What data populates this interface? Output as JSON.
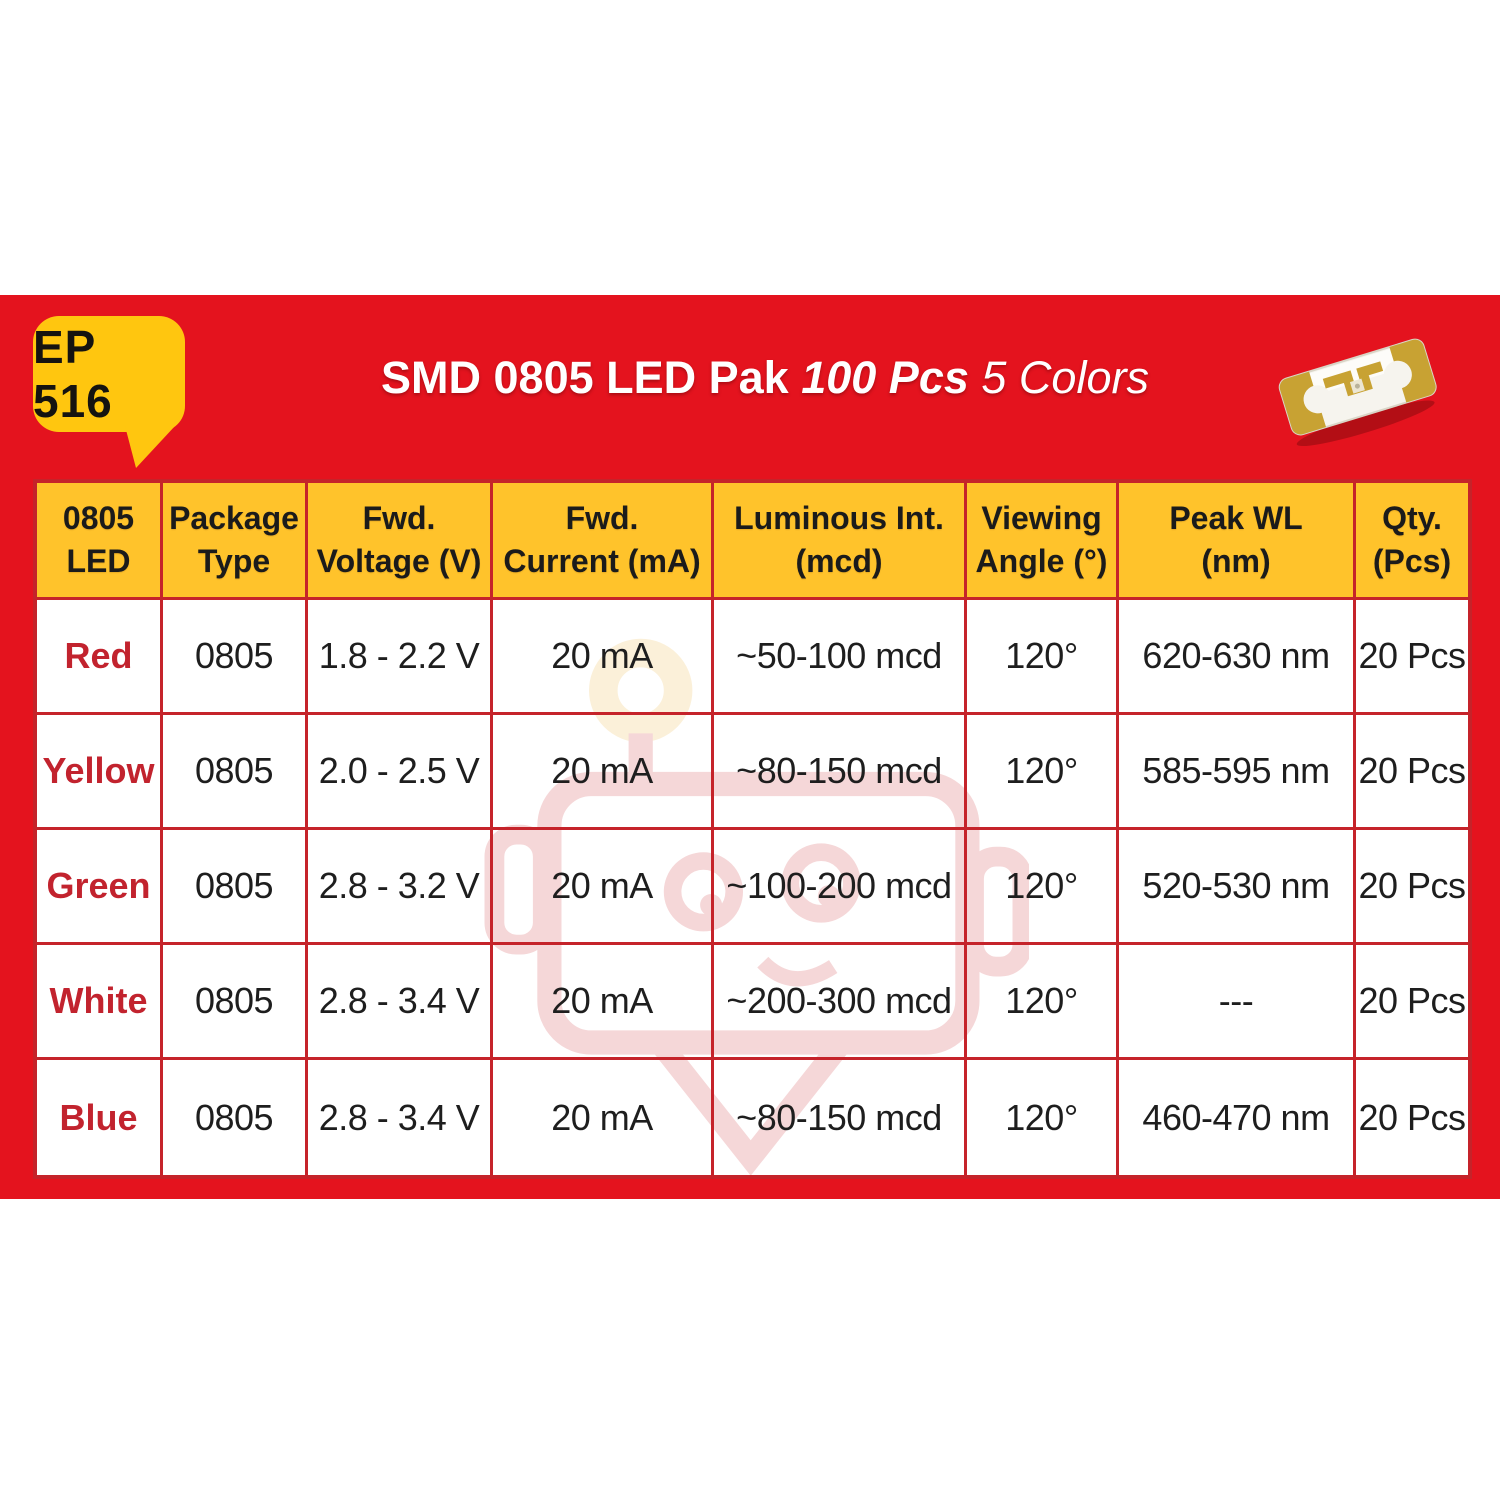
{
  "badge": {
    "label": "EP 516"
  },
  "title": {
    "main": "SMD 0805 LED Pak",
    "qty": "100 Pcs",
    "colors": "5 Colors"
  },
  "product_photo": {
    "description": "SMD 0805 LED component photo"
  },
  "theme": {
    "background_red": "#E4131E",
    "grid_red": "#C5232A",
    "header_yellow": "#FFC32B",
    "badge_yellow": "#FFC60F",
    "row_label_red": "#C2232E",
    "watermark_pink": "#F5D7D8",
    "watermark_cream": "#FBF0D9"
  },
  "table": {
    "headers": [
      {
        "line1": "0805",
        "line2": "LED"
      },
      {
        "line1": "Package",
        "line2": "Type"
      },
      {
        "line1": "Fwd.",
        "line2": "Voltage (V)"
      },
      {
        "line1": "Fwd.",
        "line2": "Current (mA)"
      },
      {
        "line1": "Luminous Int.",
        "line2": "(mcd)"
      },
      {
        "line1": "Viewing",
        "line2": "Angle (°)"
      },
      {
        "line1": "Peak WL",
        "line2": "(nm)"
      },
      {
        "line1": "Qty.",
        "line2": "(Pcs)"
      }
    ],
    "rows": [
      [
        "Red",
        "0805",
        "1.8 - 2.2 V",
        "20 mA",
        "~50-100 mcd",
        "120°",
        "620-630 nm",
        "20 Pcs"
      ],
      [
        "Yellow",
        "0805",
        "2.0 - 2.5 V",
        "20 mA",
        "~80-150 mcd",
        "120°",
        "585-595 nm",
        "20 Pcs"
      ],
      [
        "Green",
        "0805",
        "2.8 - 3.2 V",
        "20 mA",
        "~100-200 mcd",
        "120°",
        "520-530 nm",
        "20 Pcs"
      ],
      [
        "White",
        "0805",
        "2.8 - 3.4 V",
        "20 mA",
        "~200-300 mcd",
        "120°",
        "---",
        "20 Pcs"
      ],
      [
        "Blue",
        "0805",
        "2.8 - 3.4 V",
        "20 mA",
        "~80-150 mcd",
        "120°",
        "460-470 nm",
        "20 Pcs"
      ]
    ]
  }
}
